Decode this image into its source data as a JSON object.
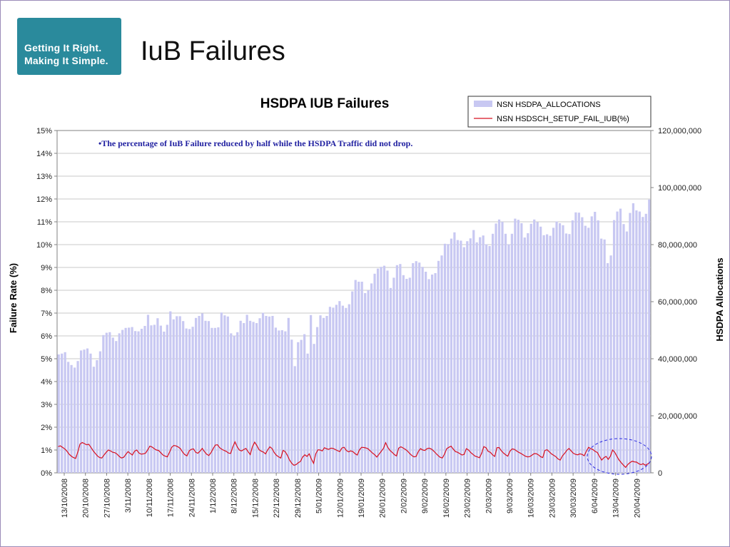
{
  "logo": {
    "line1": "Getting It Right.",
    "line2": "Making It Simple.",
    "color": "#2a8a9c"
  },
  "page_title": "IuB Failures",
  "chart_data": {
    "type": "bar+line",
    "title": "HSDPA IUB Failures",
    "annotation": "•The percentage of IuB Failure reduced by half while the HSDPA Traffic did not drop.",
    "y_left": {
      "label": "Failure Rate (%)",
      "min": 0,
      "max": 15,
      "ticks": [
        "0%",
        "1%",
        "2%",
        "3%",
        "4%",
        "5%",
        "6%",
        "7%",
        "8%",
        "9%",
        "10%",
        "11%",
        "12%",
        "13%",
        "14%",
        "15%"
      ]
    },
    "y_right": {
      "label": "HSDPA Allocations",
      "min": 0,
      "max": 120000000,
      "ticks": [
        "0",
        "20,000,000",
        "40,000,000",
        "60,000,000",
        "80,000,000",
        "100,000,000",
        "120,000,000"
      ]
    },
    "x_tick_labels": [
      "13/10/2008",
      "20/10/2008",
      "27/10/2008",
      "3/11/2008",
      "10/11/2008",
      "17/11/2008",
      "24/11/2008",
      "1/12/2008",
      "8/12/2008",
      "15/12/2008",
      "22/12/2008",
      "29/12/2008",
      "5/01/2009",
      "12/01/2009",
      "19/01/2009",
      "26/01/2009",
      "2/02/2009",
      "9/02/2009",
      "16/02/2009",
      "23/02/2009",
      "2/03/2009",
      "9/03/2009",
      "16/03/2009",
      "23/03/2009",
      "30/03/2009",
      "6/04/2009",
      "13/04/2009",
      "20/04/2009"
    ],
    "grid": true,
    "legend": {
      "placement": "top-right"
    },
    "colors": {
      "bars": "#c8c8f2",
      "line": "#d81020",
      "highlight": "#2a2ae0"
    },
    "series": [
      {
        "name": "NSN HSDPA_ALLOCATIONS",
        "axis": "right",
        "kind": "bar",
        "values": [
          41.5,
          41.8,
          42.3,
          38.9,
          37.8,
          36.9,
          39.2,
          42.9,
          43.2,
          43.6,
          41.8,
          37.2,
          39.5,
          42.6,
          48.3,
          49.1,
          49.3,
          47.4,
          46.2,
          48.9,
          50.1,
          50.8,
          50.9,
          51.1,
          49.7,
          49.6,
          50.5,
          51.5,
          55.4,
          51.7,
          51.9,
          54.2,
          51.6,
          49.5,
          51.9,
          56.6,
          53.8,
          54.9,
          54.9,
          53.2,
          50.6,
          50.4,
          51.2,
          54.3,
          55.0,
          55.9,
          53.3,
          53.2,
          50.8,
          50.8,
          51.0,
          56.2,
          55.2,
          54.8,
          48.9,
          48.1,
          49.3,
          53.3,
          52.5,
          55.4,
          53.3,
          52.9,
          52.5,
          54.2,
          56.1,
          55.0,
          54.8,
          55.0,
          50.9,
          49.9,
          50.0,
          49.6,
          54.3,
          46.7,
          37.4,
          45.8,
          46.6,
          48.6,
          41.8,
          55.3,
          45.2,
          51.1,
          55.2,
          54.3,
          55.0,
          58.2,
          57.9,
          58.9,
          60.2,
          58.6,
          57.8,
          59.1,
          63.6,
          67.6,
          67.0,
          67.0,
          63.0,
          64.0,
          66.4,
          69.8,
          71.6,
          72.2,
          72.6,
          70.9,
          64.8,
          68.4,
          72.8,
          73.2,
          69.3,
          68.0,
          68.4,
          73.5,
          74.2,
          73.7,
          72.2,
          70.5,
          67.9,
          69.5,
          70.0,
          74.3,
          76.2,
          80.3,
          80.2,
          82.1,
          84.3,
          81.6,
          81.4,
          79.1,
          81.2,
          82.2,
          85.1,
          80.8,
          82.6,
          83.2,
          80.1,
          79.5,
          83.8,
          87.4,
          88.8,
          88.0,
          83.8,
          80.1,
          83.8,
          89.1,
          88.7,
          87.5,
          82.5,
          84.0,
          87.3,
          88.8,
          87.9,
          86.3,
          83.3,
          83.6,
          83.1,
          85.9,
          88.1,
          87.5,
          86.8,
          83.9,
          83.7,
          88.5,
          91.3,
          91.2,
          89.6,
          86.6,
          85.9,
          89.9,
          91.5,
          88.5,
          82.1,
          81.8,
          73.5,
          76.2,
          88.6,
          91.6,
          92.6,
          87.2,
          84.6,
          91.1,
          94.5,
          92.0,
          91.6,
          89.7,
          90.8,
          95.8
        ]
      },
      {
        "name": "NSN HSDSCH_SETUP_FAIL_IUB(%)",
        "axis": "left",
        "kind": "line",
        "values": [
          1.15,
          1.18,
          1.12,
          1.05,
          0.95,
          0.82,
          0.73,
          0.67,
          0.63,
          0.92,
          1.26,
          1.33,
          1.28,
          1.23,
          1.25,
          1.12,
          0.97,
          0.85,
          0.74,
          0.67,
          0.65,
          0.78,
          0.9,
          1.0,
          0.96,
          0.9,
          0.88,
          0.82,
          0.72,
          0.65,
          0.68,
          0.81,
          0.93,
          0.85,
          0.78,
          0.95,
          1.0,
          0.87,
          0.82,
          0.83,
          0.86,
          1.0,
          1.17,
          1.13,
          1.06,
          1.0,
          0.98,
          0.88,
          0.78,
          0.73,
          0.7,
          0.9,
          1.12,
          1.2,
          1.18,
          1.13,
          1.06,
          0.91,
          0.8,
          0.74,
          0.96,
          1.03,
          1.05,
          0.9,
          0.86,
          0.95,
          1.07,
          0.93,
          0.82,
          0.76,
          0.88,
          1.06,
          1.22,
          1.23,
          1.1,
          1.03,
          0.98,
          0.94,
          0.87,
          0.85,
          1.13,
          1.36,
          1.14,
          1.0,
          0.96,
          1.02,
          1.07,
          0.93,
          0.8,
          1.15,
          1.34,
          1.2,
          1.02,
          0.95,
          0.91,
          0.83,
          1.01,
          1.14,
          1.06,
          0.88,
          0.77,
          0.7,
          0.65,
          0.98,
          0.93,
          0.77,
          0.56,
          0.42,
          0.33,
          0.36,
          0.44,
          0.5,
          0.69,
          0.79,
          0.72,
          0.83,
          0.6,
          0.42,
          0.83,
          1.01,
          1.0,
          0.96,
          1.1,
          1.05,
          1.03,
          1.08,
          1.07,
          1.02,
          0.97,
          0.93,
          1.09,
          1.12,
          0.98,
          0.92,
          0.96,
          0.93,
          0.84,
          0.78,
          1.0,
          1.12,
          1.11,
          1.09,
          1.05,
          0.96,
          0.87,
          0.79,
          0.69,
          0.82,
          0.94,
          1.07,
          1.32,
          1.12,
          0.98,
          0.9,
          0.8,
          0.74,
          1.08,
          1.14,
          1.09,
          1.03,
          0.96,
          0.85,
          0.76,
          0.7,
          0.72,
          0.93,
          1.06,
          1.0,
          0.98,
          1.06,
          1.08,
          1.04,
          0.96,
          0.86,
          0.76,
          0.68,
          0.65,
          0.82,
          1.06,
          1.12,
          1.17,
          1.04,
          0.93,
          0.9,
          0.84,
          0.78,
          0.81,
          1.06,
          1.0,
          0.89,
          0.81,
          0.73,
          0.7,
          0.66,
          0.85,
          1.15,
          1.1,
          0.94,
          0.9,
          0.79,
          0.72,
          1.1,
          1.11,
          0.97,
          0.87,
          0.79,
          0.73,
          0.95,
          1.05,
          1.03,
          0.96,
          0.9,
          0.85,
          0.79,
          0.73,
          0.7,
          0.71,
          0.77,
          0.84,
          0.84,
          0.79,
          0.71,
          0.67,
          0.98,
          1.01,
          0.92,
          0.83,
          0.77,
          0.71,
          0.61,
          0.56,
          0.74,
          0.85,
          0.98,
          1.07,
          0.96,
          0.86,
          0.81,
          0.79,
          0.83,
          0.81,
          0.75,
          0.95,
          1.12,
          1.06,
          1.02,
          0.94,
          0.89,
          0.72,
          0.56,
          0.66,
          0.72,
          0.59,
          0.73,
          1.0,
          0.9,
          0.72,
          0.56,
          0.44,
          0.33,
          0.24,
          0.37,
          0.45,
          0.51,
          0.48,
          0.47,
          0.4,
          0.36,
          0.4,
          0.33,
          0.38,
          0.45
        ]
      }
    ]
  }
}
